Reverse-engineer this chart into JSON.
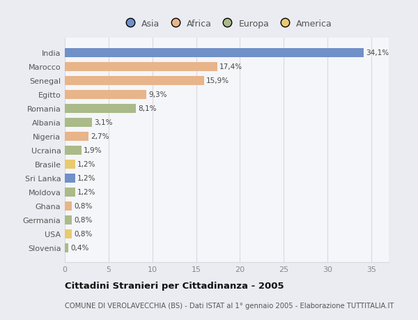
{
  "countries": [
    "India",
    "Marocco",
    "Senegal",
    "Egitto",
    "Romania",
    "Albania",
    "Nigeria",
    "Ucraina",
    "Brasile",
    "Sri Lanka",
    "Moldova",
    "Ghana",
    "Germania",
    "USA",
    "Slovenia"
  ],
  "values": [
    34.1,
    17.4,
    15.9,
    9.3,
    8.1,
    3.1,
    2.7,
    1.9,
    1.2,
    1.2,
    1.2,
    0.8,
    0.8,
    0.8,
    0.4
  ],
  "labels": [
    "34,1%",
    "17,4%",
    "15,9%",
    "9,3%",
    "8,1%",
    "3,1%",
    "2,7%",
    "1,9%",
    "1,2%",
    "1,2%",
    "1,2%",
    "0,8%",
    "0,8%",
    "0,8%",
    "0,4%"
  ],
  "continents": [
    "Asia",
    "Africa",
    "Africa",
    "Africa",
    "Europa",
    "Europa",
    "Africa",
    "Europa",
    "America",
    "Asia",
    "Europa",
    "Africa",
    "Europa",
    "America",
    "Europa"
  ],
  "colors": {
    "Asia": "#7090C8",
    "Africa": "#E8B48A",
    "Europa": "#AABA88",
    "America": "#E8CA70"
  },
  "xlim": [
    0,
    37
  ],
  "xticks": [
    0,
    5,
    10,
    15,
    20,
    25,
    30,
    35
  ],
  "title": "Cittadini Stranieri per Cittadinanza - 2005",
  "subtitle": "COMUNE DI VEROLAVECCHIA (BS) - Dati ISTAT al 1° gennaio 2005 - Elaborazione TUTTITALIA.IT",
  "background_color": "#eaecf2",
  "plot_bg_color": "#f5f6f9",
  "grid_color": "#d8d8e0",
  "legend_order": [
    "Asia",
    "Africa",
    "Europa",
    "America"
  ]
}
